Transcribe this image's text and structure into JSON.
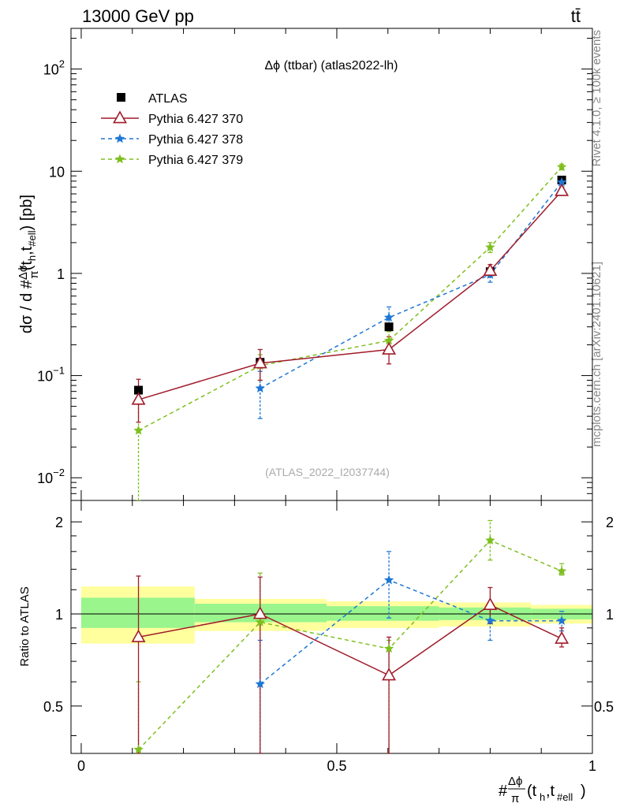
{
  "header": {
    "energy_label": "13000 GeV pp",
    "process_label": "tt̄"
  },
  "side_labels": {
    "rivet": "Rivet 4.1.0, ≥ 100k events",
    "mcplots": "mcplots.cern.ch [arXiv:2401.10621]"
  },
  "chart_data": {
    "type": "scatter",
    "title": "Δϕ (ttbar) (atlas2022-lh)",
    "watermark": "(ATLAS_2022_I2037744)",
    "ylabel_main": "dσ / d #Δϕ/π(th,t#ell) [pb]",
    "ylabel_ratio": "Ratio to ATLAS",
    "xlabel": "#Δϕ/π(th,t#ell)",
    "xlim": [
      -0.02,
      1.0
    ],
    "ylim_main": [
      0.006,
      250
    ],
    "ylim_ratio": [
      0.35,
      2.35
    ],
    "y_scale": "log",
    "x_ticks": [
      {
        "value": 0,
        "label": "0"
      },
      {
        "value": 0.5,
        "label": "0.5"
      },
      {
        "value": 1,
        "label": "1"
      }
    ],
    "main_y_ticks": [
      {
        "value": 0.01,
        "base": "10",
        "exp": "−2"
      },
      {
        "value": 0.1,
        "base": "10",
        "exp": "−1"
      },
      {
        "value": 1,
        "base": "1",
        "exp": ""
      },
      {
        "value": 10,
        "base": "10",
        "exp": ""
      },
      {
        "value": 100,
        "base": "10",
        "exp": "2"
      }
    ],
    "ratio_y_ticks": [
      {
        "value": 0.5,
        "label": "0.5"
      },
      {
        "value": 1,
        "label": "1"
      },
      {
        "value": 2,
        "label": "2"
      }
    ],
    "bins": [
      {
        "lo": 0.0,
        "hi": 0.222,
        "center": 0.112
      },
      {
        "lo": 0.222,
        "hi": 0.48,
        "center": 0.35
      },
      {
        "lo": 0.48,
        "hi": 0.7,
        "center": 0.602
      },
      {
        "lo": 0.7,
        "hi": 0.88,
        "center": 0.8
      },
      {
        "lo": 0.88,
        "hi": 1.0,
        "center": 0.94
      }
    ],
    "data": {
      "name": "ATLAS",
      "values": [
        0.072,
        0.135,
        0.3,
        1.04,
        8.2
      ],
      "band_stat": [
        [
          0.9,
          1.13
        ],
        [
          0.94,
          1.08
        ],
        [
          0.95,
          1.06
        ],
        [
          0.955,
          1.05
        ],
        [
          0.96,
          1.04
        ]
      ],
      "band_total": [
        [
          0.8,
          1.23
        ],
        [
          0.88,
          1.12
        ],
        [
          0.9,
          1.1
        ],
        [
          0.91,
          1.09
        ],
        [
          0.93,
          1.07
        ]
      ]
    },
    "series": [
      {
        "name": "Pythia 6.427 370",
        "color": "#a01b2a",
        "style": "solid",
        "marker": "triangle-open",
        "values": [
          0.058,
          0.132,
          0.18,
          1.06,
          6.4
        ],
        "errors": [
          [
            0.035,
            0.092
          ],
          [
            0.09,
            0.18
          ],
          [
            0.13,
            0.24
          ],
          [
            0.92,
            1.22
          ],
          [
            5.8,
            7.0
          ]
        ],
        "ratio": [
          0.84,
          1.0,
          0.63,
          1.07,
          0.83
        ],
        "ratio_errors": [
          [
            0.35,
            1.33
          ],
          [
            0.35,
            1.32
          ],
          [
            0.35,
            0.84
          ],
          [
            0.93,
            1.22
          ],
          [
            0.78,
            0.9
          ]
        ]
      },
      {
        "name": "Pythia 6.427 378",
        "color": "#1f77d4",
        "style": "dashed",
        "marker": "star",
        "values": [
          null,
          0.075,
          0.37,
          0.97,
          7.8
        ],
        "errors": [
          null,
          [
            0.038,
            0.11
          ],
          [
            0.28,
            0.47
          ],
          [
            0.82,
            1.12
          ],
          [
            7.0,
            8.6
          ]
        ],
        "ratio": [
          null,
          0.59,
          1.29,
          0.95,
          0.95
        ],
        "ratio_errors": [
          null,
          [
            0.35,
            0.82
          ],
          [
            0.97,
            1.6
          ],
          [
            0.82,
            1.06
          ],
          [
            0.88,
            1.02
          ]
        ]
      },
      {
        "name": "Pythia 6.427 379",
        "color": "#7ebf1e",
        "style": "dashed",
        "marker": "star",
        "values": [
          0.029,
          0.125,
          0.22,
          1.8,
          11.0
        ],
        "errors": [
          [
            0.006,
            0.055
          ],
          [
            0.09,
            0.16
          ],
          [
            0.17,
            0.27
          ],
          [
            1.6,
            2.0
          ],
          [
            10.3,
            11.7
          ]
        ],
        "ratio": [
          0.36,
          0.94,
          0.77,
          1.74,
          1.38
        ],
        "ratio_errors": [
          [
            0.35,
            0.6
          ],
          [
            0.35,
            1.36
          ],
          [
            0.35,
            0.82
          ],
          [
            1.5,
            2.02
          ],
          [
            1.34,
            1.46
          ]
        ]
      }
    ]
  }
}
